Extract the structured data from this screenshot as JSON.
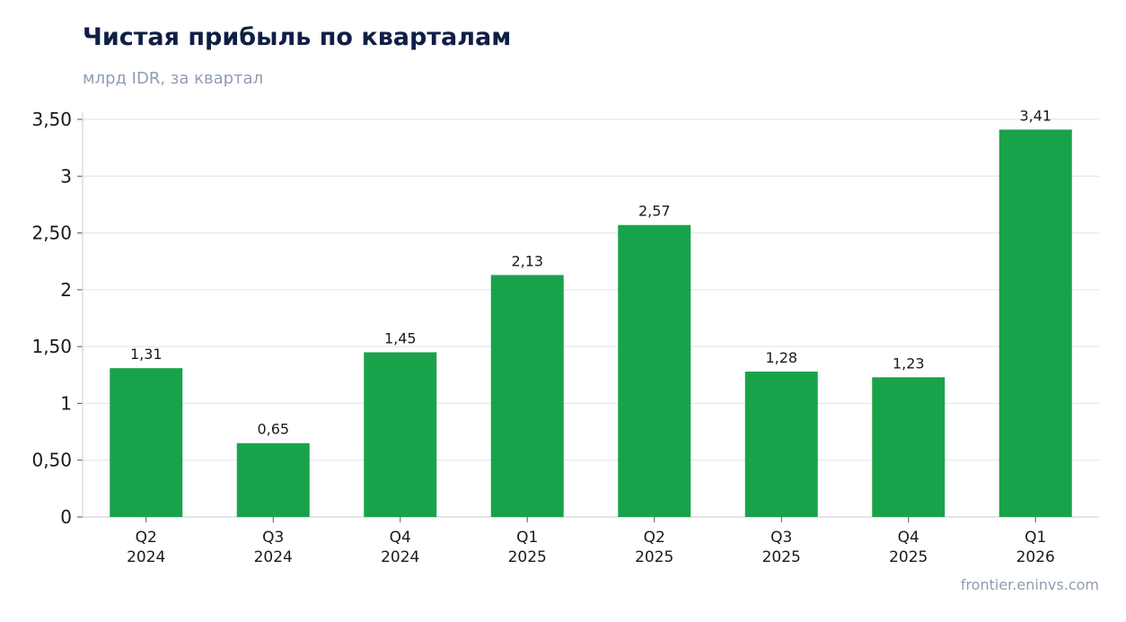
{
  "title": "Чистая прибыль по кварталам",
  "subtitle": "млрд IDR, за квартал",
  "source": "frontier.eninvs.com",
  "colors": {
    "bar": "#18a34a",
    "grid": "#e3e7ee",
    "axis": "#cfd5dd",
    "title": "#0f1f45",
    "muted": "#8f9db0"
  },
  "chart_data": {
    "type": "bar",
    "categories": [
      [
        "Q2",
        "2024"
      ],
      [
        "Q3",
        "2024"
      ],
      [
        "Q4",
        "2024"
      ],
      [
        "Q1",
        "2025"
      ],
      [
        "Q2",
        "2025"
      ],
      [
        "Q3",
        "2025"
      ],
      [
        "Q4",
        "2025"
      ],
      [
        "Q1",
        "2026"
      ]
    ],
    "values": [
      1.31,
      0.65,
      1.45,
      2.13,
      2.57,
      1.28,
      1.23,
      3.41
    ],
    "value_labels": [
      "1,31",
      "0,65",
      "1,45",
      "2,13",
      "2,57",
      "1,28",
      "1,23",
      "3,41"
    ],
    "yticks": [
      0,
      0.5,
      1,
      1.5,
      2,
      2.5,
      3,
      3.5
    ],
    "ytick_labels": [
      "0",
      "0,50",
      "1",
      "1,50",
      "2",
      "2,50",
      "3",
      "3,50"
    ],
    "ylim": [
      0,
      3.5
    ],
    "grid": true,
    "legend": "none"
  }
}
